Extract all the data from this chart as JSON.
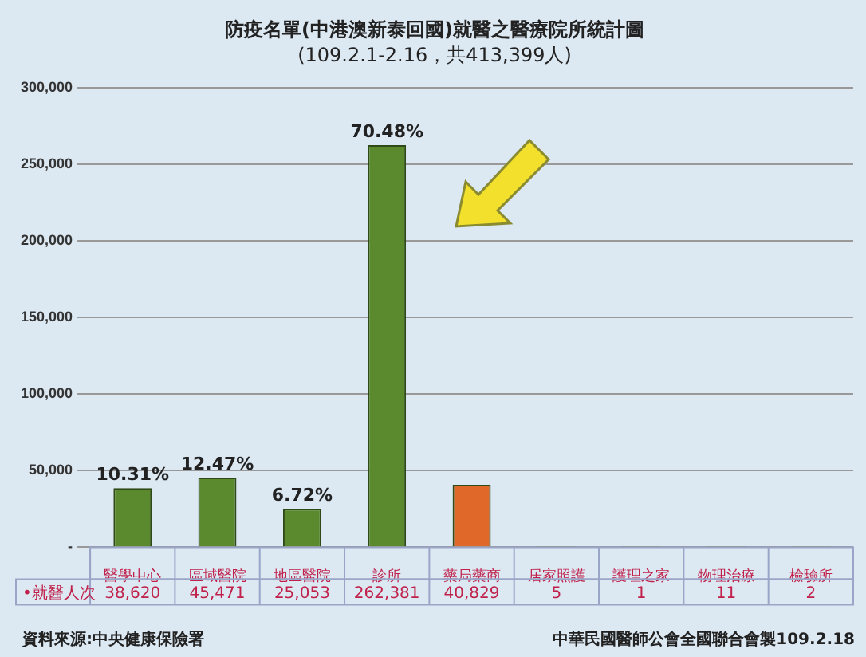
{
  "chart_data": {
    "type": "bar",
    "title": "防疫名單(中港澳新泰回國)就醫之醫療院所統計圖",
    "subtitle": "(109.2.1-2.16，共413,399人)",
    "categories": [
      "醫學中心",
      "區域醫院",
      "地區醫院",
      "診所",
      "藥局藥商",
      "居家照護",
      "護理之家",
      "物理治療",
      "檢驗所"
    ],
    "values": [
      38620,
      45471,
      25053,
      262381,
      40829,
      5,
      1,
      11,
      2
    ],
    "colors": [
      "#5b8a2e",
      "#5b8a2e",
      "#5b8a2e",
      "#5b8a2e",
      "#e0692a",
      "#5b8a2e",
      "#5b8a2e",
      "#5b8a2e",
      "#5b8a2e"
    ],
    "value_labels": [
      "38,620",
      "45,471",
      "25,053",
      "262,381",
      "40,829",
      "5",
      "1",
      "11",
      "2"
    ],
    "ylim": [
      0,
      300000
    ],
    "yticks": [
      {
        "value": 0,
        "label": "-"
      },
      {
        "value": 50000,
        "label": "50,000"
      },
      {
        "value": 100000,
        "label": "100,000"
      },
      {
        "value": 150000,
        "label": "150,000"
      },
      {
        "value": 200000,
        "label": "200,000"
      },
      {
        "value": 250000,
        "label": "250,000"
      },
      {
        "value": 300000,
        "label": "300,000"
      }
    ],
    "grid": "y",
    "legend": false,
    "annotations": [
      {
        "text": "10.31%",
        "x": "醫學中心",
        "y": 38620
      },
      {
        "text": "12.47%",
        "x": "區域醫院",
        "y": 45471
      },
      {
        "text": "6.72%",
        "x": "地區醫院",
        "y": 25053
      },
      {
        "text": "70.48%",
        "x": "診所",
        "y": 262381
      },
      "•就醫人次",
      "資料來源:中央健康保險署",
      "中華民國醫師公會全國聯合會製109.2.18"
    ]
  }
}
